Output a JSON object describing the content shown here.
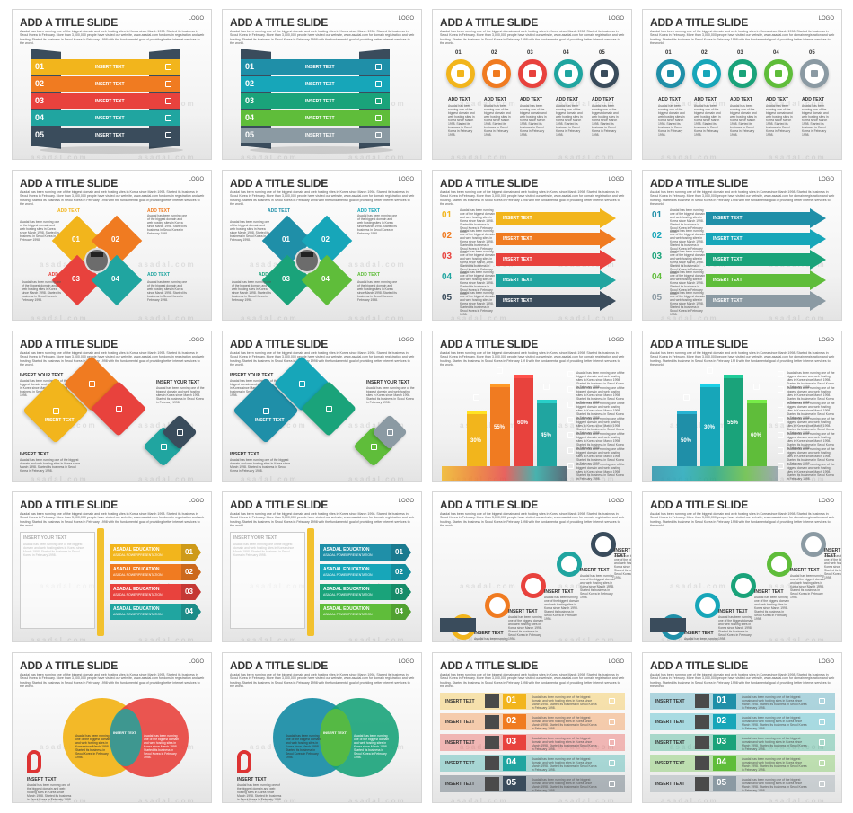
{
  "title": "ADD A TITLE SLIDE",
  "logo": "LOGO",
  "desc": "Asadal has been running one of the biggest domain and web hosting sites in Korea since March 1998. Started its business in Seoul Korea in February. More than 3,000,000 people have visited our website, www.asadal.com for domain registration and web hosting. Started its business in Seoul Korea in February 1998 with the fundamental goal of providing better internet services to the world.",
  "watermark": "asadal.com",
  "labels": {
    "insert_text": "INSERT TEXT",
    "insert_your_text": "INSERT YOUR TEXT",
    "add_text": "ADD TEXT",
    "edu": "ASADAL EDUCATION",
    "edu_sub": "ASADAL POWERPRESENTATION",
    "body": "Asadal has been running one of the biggest domain and web hosting sites in Korea since March 1998. Started its business in Seoul Korea in February 1998."
  },
  "nums5": [
    "01",
    "02",
    "03",
    "04",
    "05"
  ],
  "nums4": [
    "01",
    "02",
    "03",
    "04"
  ],
  "percents_warm": [
    "30%",
    "55%",
    "60%",
    "45%"
  ],
  "percents_cool": [
    "50%",
    "30%",
    "55%",
    "60%"
  ],
  "palette": {
    "warm": [
      "#f2b51c",
      "#f07b21",
      "#e8423d",
      "#20a5a0",
      "#3a4c5c"
    ],
    "cool": [
      "#1f8fa8",
      "#17a6b9",
      "#1aa37a",
      "#5fbd3a",
      "#8b9aa3"
    ]
  },
  "slides": [
    {
      "id": "s1",
      "theme": "warm",
      "kind": "zigzag-list"
    },
    {
      "id": "s2",
      "theme": "cool",
      "kind": "zigzag-list"
    },
    {
      "id": "s3",
      "theme": "warm",
      "kind": "circle-steps"
    },
    {
      "id": "s4",
      "theme": "cool",
      "kind": "circle-steps"
    },
    {
      "id": "s5",
      "theme": "warm",
      "kind": "diamond-quad"
    },
    {
      "id": "s6",
      "theme": "cool",
      "kind": "diamond-quad"
    },
    {
      "id": "s7",
      "theme": "warm",
      "kind": "arrows"
    },
    {
      "id": "s8",
      "theme": "cool",
      "kind": "arrows"
    },
    {
      "id": "s9",
      "theme": "warm",
      "kind": "rhombus-chain"
    },
    {
      "id": "s10",
      "theme": "cool",
      "kind": "rhombus-chain"
    },
    {
      "id": "s11",
      "theme": "warm",
      "kind": "bars-3d"
    },
    {
      "id": "s12",
      "theme": "cool",
      "kind": "bars-3d"
    },
    {
      "id": "s13",
      "theme": "warm",
      "kind": "pencil-list"
    },
    {
      "id": "s14",
      "theme": "cool",
      "kind": "pencil-list"
    },
    {
      "id": "s15",
      "theme": "warm",
      "kind": "ring-chain"
    },
    {
      "id": "s16",
      "theme": "cool",
      "kind": "ring-chain"
    },
    {
      "id": "s17",
      "theme": "warm",
      "kind": "venn"
    },
    {
      "id": "s18",
      "theme": "cool",
      "kind": "venn"
    },
    {
      "id": "s19",
      "theme": "warm",
      "kind": "ribbon-list"
    },
    {
      "id": "s20",
      "theme": "cool",
      "kind": "ribbon-list"
    }
  ]
}
